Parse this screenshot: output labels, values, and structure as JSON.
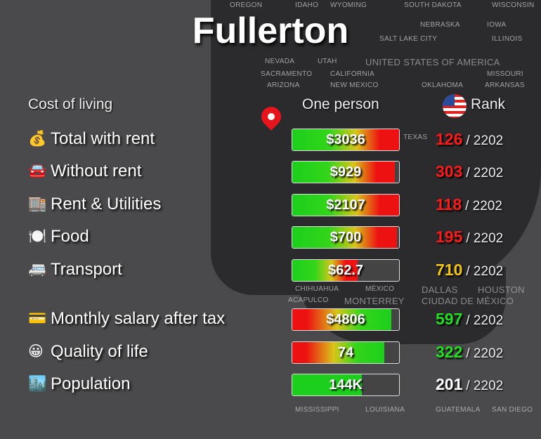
{
  "title": "Fullerton",
  "headers": {
    "category": "Cost of living",
    "one_person": "One person",
    "rank": "Rank"
  },
  "map_labels": [
    "OREGON",
    "IDAHO",
    "WYOMING",
    "SOUTH DAKOTA",
    "WISCONSIN",
    "NEBRASKA",
    "IOWA",
    "SALT LAKE CITY",
    "NEVADA",
    "UTAH",
    "UNITED STATES OF AMERICA",
    "ILLINOIS",
    "SACRAMENTO",
    "MISSOURI",
    "CALIFORNIA",
    "OKLAHOMA",
    "ARKANSAS",
    "ARIZONA",
    "NEW MEXICO",
    "MISSISSIPPI",
    "DALLAS",
    "TEXAS",
    "LOUISIANA",
    "HOUSTON",
    "CHIHUAHUA",
    "MONTERREY",
    "MÉXICO",
    "CIUDAD DE MÉXICO",
    "ACAPULCO",
    "GUATEMALA",
    "SAN DIEGO"
  ],
  "rows": [
    {
      "icon": "money-bag-icon",
      "emoji": "💰",
      "label": "Total with rent",
      "value": "$3036",
      "fill": 1.0,
      "style": "gr",
      "rank": "126",
      "rank_color": "#ff1a1a",
      "total": "/ 2202"
    },
    {
      "icon": "car-icon",
      "emoji": "🚘",
      "label": "Without rent",
      "value": "$929",
      "fill": 0.96,
      "style": "gr",
      "rank": "303",
      "rank_color": "#ff1a1a",
      "total": "/ 2202"
    },
    {
      "icon": "building-icon",
      "emoji": "🏬",
      "label": "Rent & Utilities",
      "value": "$2107",
      "fill": 1.0,
      "style": "gr",
      "rank": "118",
      "rank_color": "#ff1a1a",
      "total": "/ 2202"
    },
    {
      "icon": "plate-icon",
      "emoji": "🍽️",
      "label": "Food",
      "value": "$700",
      "fill": 0.98,
      "style": "gr",
      "rank": "195",
      "rank_color": "#ff1a1a",
      "total": "/ 2202"
    },
    {
      "icon": "bus-icon",
      "emoji": "🚐",
      "label": "Transport",
      "value": "$62.7",
      "fill": 0.61,
      "style": "gr",
      "rank": "710",
      "rank_color": "#f0c419",
      "total": "/ 2202"
    },
    {
      "icon": "credit-card-icon",
      "emoji": "💳",
      "label": "Monthly salary after tax",
      "value": "$4806",
      "fill": 0.93,
      "style": "rg",
      "rank": "597",
      "rank_color": "#22dd22",
      "total": "/ 2202"
    },
    {
      "icon": "smiley-icon",
      "emoji": "😀",
      "label": "Quality of life",
      "value": "74",
      "fill": 0.86,
      "style": "rg",
      "rank": "322",
      "rank_color": "#22dd22",
      "total": "/ 2202"
    },
    {
      "icon": "city-icon",
      "emoji": "🏙️",
      "label": "Population",
      "value": "144K",
      "fill": 0.65,
      "style": "g",
      "rank": "201",
      "rank_color": "#ffffff",
      "total": "/ 2202"
    }
  ]
}
